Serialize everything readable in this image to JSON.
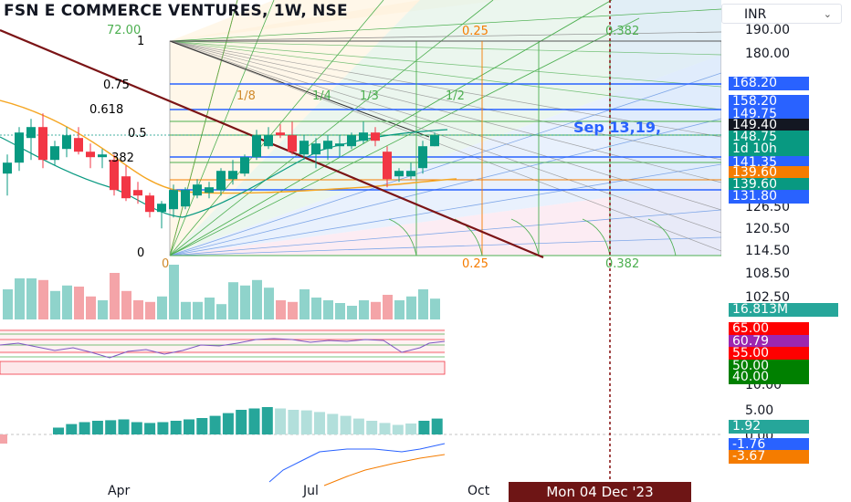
{
  "header": {
    "title": "FSN E COMMERCE VENTURES, 1W, NSE"
  },
  "currency": {
    "label": "INR"
  },
  "fib_levels": [
    {
      "label": "1",
      "color": "#4a4a4a"
    },
    {
      "label": "0.75",
      "color": "#2962ff"
    },
    {
      "label": "0.618",
      "color": "#089981"
    },
    {
      "label": "0.5",
      "color": "#4caf50"
    },
    {
      "label": ".382",
      "color": "#4caf50"
    },
    {
      "label": "0",
      "color": "#333333"
    }
  ],
  "range_labels": {
    "top": "72.00",
    "zero": "0"
  },
  "fan_labels": [
    "1/8",
    "1/4",
    "1/3",
    "1/2"
  ],
  "time_fib_top": [
    {
      "label": "0.25",
      "color": "#f57c00"
    },
    {
      "label": "0.382",
      "color": "#4caf50"
    }
  ],
  "time_fib_bottom": [
    {
      "label": "0.25",
      "color": "#f57c00"
    },
    {
      "label": "0.382",
      "color": "#4caf50"
    }
  ],
  "annotation": "Sep 13,19,",
  "price_ticks": [
    "190.00",
    "180.00",
    "126.50",
    "120.50",
    "114.50",
    "108.50",
    "102.50",
    "10.00",
    "5.00",
    "0.00"
  ],
  "price_tags": [
    {
      "label": "168.20",
      "color": "#2962ff"
    },
    {
      "label": "158.20",
      "color": "#2962ff"
    },
    {
      "label": "149.75",
      "color": "#2962ff"
    },
    {
      "label": "149.40",
      "color": "#131722"
    },
    {
      "label": "148.75",
      "color": "#089981"
    },
    {
      "label": "1d 10h",
      "color": "#089981"
    },
    {
      "label": "141.35",
      "color": "#2962ff"
    },
    {
      "label": "139.60",
      "color": "#f57c00"
    },
    {
      "label": "139.60",
      "color": "#089981"
    },
    {
      "label": "131.80",
      "color": "#2962ff"
    },
    {
      "label": "16.813M",
      "color": "#26a69a"
    },
    {
      "label": "65.00",
      "color": "#ff0000"
    },
    {
      "label": "60.79",
      "color": "#9c27b0"
    },
    {
      "label": "55.00",
      "color": "#ff0000"
    },
    {
      "label": "50.00",
      "color": "#008000"
    },
    {
      "label": "40.00",
      "color": "#008000"
    },
    {
      "label": "1.92",
      "color": "#26a69a"
    },
    {
      "label": "-1.76",
      "color": "#2962ff"
    },
    {
      "label": "-3.67",
      "color": "#f57c00"
    }
  ],
  "time_axis": [
    "Apr",
    "Jul",
    "Oct"
  ],
  "crosshair_date": "Mon 04 Dec '23",
  "colors": {
    "up": "#089981",
    "down": "#f23645",
    "vol_up": "#8fd3cb",
    "vol_down": "#f4a4a8",
    "trend": "#7b1416"
  },
  "chart_data": {
    "type": "candlestick",
    "symbol": "FSN E COMMERCE VENTURES",
    "interval": "1W",
    "exchange": "NSE",
    "currency": "INR",
    "candles": [
      {
        "o": 135,
        "h": 142,
        "l": 127,
        "c": 139
      },
      {
        "o": 139,
        "h": 152,
        "l": 136,
        "c": 150
      },
      {
        "o": 148,
        "h": 155,
        "l": 140,
        "c": 152
      },
      {
        "o": 152,
        "h": 157,
        "l": 137,
        "c": 140
      },
      {
        "o": 140,
        "h": 147,
        "l": 138,
        "c": 145
      },
      {
        "o": 144,
        "h": 152,
        "l": 141,
        "c": 149
      },
      {
        "o": 148,
        "h": 152,
        "l": 142,
        "c": 143
      },
      {
        "o": 143,
        "h": 146,
        "l": 137,
        "c": 141
      },
      {
        "o": 141,
        "h": 144,
        "l": 137,
        "c": 142
      },
      {
        "o": 140,
        "h": 142,
        "l": 127,
        "c": 129
      },
      {
        "o": 134,
        "h": 138,
        "l": 125,
        "c": 126
      },
      {
        "o": 129,
        "h": 132,
        "l": 124,
        "c": 127
      },
      {
        "o": 127,
        "h": 128,
        "l": 119,
        "c": 121
      },
      {
        "o": 121,
        "h": 125,
        "l": 115,
        "c": 124
      },
      {
        "o": 122,
        "h": 131,
        "l": 119,
        "c": 129
      },
      {
        "o": 123,
        "h": 130,
        "l": 122,
        "c": 129
      },
      {
        "o": 127,
        "h": 133,
        "l": 126,
        "c": 131
      },
      {
        "o": 128,
        "h": 132,
        "l": 126,
        "c": 130
      },
      {
        "o": 129,
        "h": 137,
        "l": 127,
        "c": 136
      },
      {
        "o": 133,
        "h": 140,
        "l": 131,
        "c": 136
      },
      {
        "o": 135,
        "h": 142,
        "l": 134,
        "c": 141
      },
      {
        "o": 141,
        "h": 151,
        "l": 140,
        "c": 149
      },
      {
        "o": 145,
        "h": 152,
        "l": 144,
        "c": 149
      },
      {
        "o": 150,
        "h": 153,
        "l": 148,
        "c": 149
      },
      {
        "o": 149,
        "h": 154,
        "l": 142,
        "c": 143
      },
      {
        "o": 142,
        "h": 149,
        "l": 140,
        "c": 147
      },
      {
        "o": 142,
        "h": 148,
        "l": 137,
        "c": 146
      },
      {
        "o": 144,
        "h": 149,
        "l": 140,
        "c": 147
      },
      {
        "o": 145,
        "h": 149,
        "l": 141,
        "c": 146
      },
      {
        "o": 145,
        "h": 150,
        "l": 144,
        "c": 149
      },
      {
        "o": 147,
        "h": 154,
        "l": 146,
        "c": 150
      },
      {
        "o": 150,
        "h": 152,
        "l": 145,
        "c": 147
      },
      {
        "o": 143,
        "h": 145,
        "l": 130,
        "c": 133
      },
      {
        "o": 134,
        "h": 137,
        "l": 132,
        "c": 136
      },
      {
        "o": 134,
        "h": 139,
        "l": 133,
        "c": 136
      },
      {
        "o": 137,
        "h": 147,
        "l": 135,
        "c": 145
      },
      {
        "o": 145,
        "h": 150,
        "l": 145,
        "c": 149
      }
    ],
    "volume": [
      0.55,
      0.75,
      0.75,
      0.72,
      0.52,
      0.62,
      0.6,
      0.42,
      0.35,
      0.85,
      0.52,
      0.35,
      0.32,
      0.42,
      1.0,
      0.32,
      0.32,
      0.4,
      0.28,
      0.68,
      0.62,
      0.72,
      0.58,
      0.35,
      0.32,
      0.55,
      0.4,
      0.35,
      0.3,
      0.25,
      0.35,
      0.32,
      0.45,
      0.35,
      0.42,
      0.55,
      0.38
    ],
    "rsi": {
      "current": 60.79,
      "bands": [
        65,
        55,
        50,
        40
      ]
    },
    "histogram": [
      0.25,
      0.38,
      0.45,
      0.5,
      0.52,
      0.55,
      0.45,
      0.42,
      0.45,
      0.5,
      0.55,
      0.6,
      0.68,
      0.78,
      0.9,
      0.95,
      1.0,
      0.95,
      0.9,
      0.88,
      0.82,
      0.75,
      0.68,
      0.58,
      0.5,
      0.42,
      0.35,
      0.4,
      0.5,
      0.58
    ],
    "macd_current": -1.76,
    "signal_current": -3.67,
    "hist_current": 1.92,
    "last_close": 148.75,
    "volume_current": "16.813M"
  }
}
